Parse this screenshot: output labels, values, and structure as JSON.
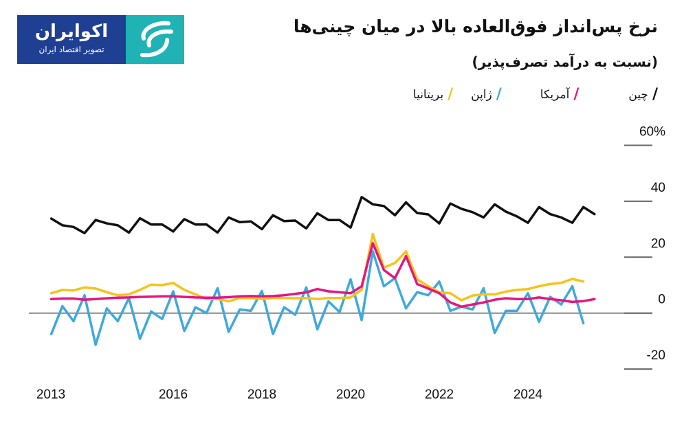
{
  "logo": {
    "name": "اکوایران",
    "tagline": "تصویر اقتصاد ایران",
    "colors": {
      "blue": "#1f3f93",
      "teal": "#1fb3b5"
    }
  },
  "header": {
    "title": "نرخ پس‌انداز فوق‌العاده بالا در میان چینی‌ها",
    "subtitle": "(نسبت به درآمد تصرف‌پذیر)"
  },
  "chart_data": {
    "type": "line",
    "title": "نرخ پس‌انداز فوق‌العاده بالا در میان چینی‌ها",
    "subtitle": "(نسبت به درآمد تصرف‌پذیر)",
    "x_ticks": [
      2013,
      2016,
      2018,
      2020,
      2022,
      2024
    ],
    "y_ticks": [
      60,
      40,
      20,
      0,
      -20
    ],
    "y_tick_labels": [
      "60%",
      "40",
      "20",
      "0",
      "-20"
    ],
    "ylim": [
      -20,
      60
    ],
    "y_axis_position": "right",
    "x_start": 2013.25,
    "x_step": 0.25,
    "legend_placement": "top",
    "series": [
      {
        "name": "چین",
        "color": "#111111",
        "values": [
          33.8,
          31.4,
          30.8,
          28.6,
          33.3,
          32.1,
          31.4,
          28.8,
          33.9,
          31.7,
          31.7,
          29.2,
          33.6,
          31.7,
          31.7,
          28.8,
          34.2,
          32.5,
          32.8,
          30.0,
          35.0,
          32.9,
          33.1,
          30.3,
          35.7,
          33.3,
          33.3,
          30.6,
          41.5,
          38.9,
          38.3,
          35.0,
          39.6,
          35.8,
          35.3,
          32.1,
          39.2,
          37.3,
          36.1,
          34.2,
          38.9,
          36.3,
          34.6,
          32.3,
          37.9,
          35.4,
          34.2,
          32.3,
          37.9,
          35.4
        ]
      },
      {
        "name": "آمریکا",
        "color": "#e6157f",
        "values": [
          5.0,
          5.2,
          5.2,
          4.8,
          5.0,
          5.3,
          5.5,
          5.6,
          5.8,
          5.9,
          6.0,
          6.0,
          5.8,
          5.6,
          5.5,
          5.5,
          5.7,
          6.0,
          6.1,
          6.0,
          6.1,
          6.4,
          6.9,
          7.4,
          8.6,
          7.8,
          7.5,
          7.1,
          9.6,
          25.0,
          15.4,
          12.5,
          20.4,
          10.4,
          8.8,
          7.1,
          3.8,
          2.3,
          3.1,
          3.8,
          4.8,
          5.3,
          5.0,
          5.0,
          5.6,
          5.0,
          4.6,
          4.0,
          4.3,
          5.0
        ]
      },
      {
        "name": "ژاپن",
        "color": "#3ea9dc",
        "values": [
          -7.5,
          2.5,
          -2.9,
          6.4,
          -11.3,
          1.7,
          -2.9,
          5.4,
          -9.2,
          0.6,
          -2.1,
          7.8,
          -6.4,
          2.1,
          0.0,
          8.9,
          -6.7,
          1.3,
          0.8,
          7.9,
          -7.5,
          2.1,
          -0.6,
          9.2,
          -5.8,
          4.2,
          0.4,
          12.1,
          -2.5,
          22.1,
          9.6,
          12.5,
          1.7,
          7.5,
          6.4,
          11.3,
          0.8,
          2.3,
          1.3,
          8.9,
          -7.1,
          0.8,
          0.8,
          7.1,
          -3.1,
          5.8,
          3.1,
          9.6,
          -3.6
        ]
      },
      {
        "name": "بریتانیا",
        "color": "#f7c31a",
        "values": [
          7.1,
          8.3,
          8.1,
          9.2,
          8.8,
          7.5,
          6.4,
          6.7,
          8.3,
          10.2,
          10.0,
          10.8,
          8.3,
          6.7,
          5.0,
          5.0,
          4.2,
          5.4,
          5.4,
          5.0,
          5.4,
          5.4,
          5.3,
          5.4,
          5.0,
          5.4,
          5.4,
          5.6,
          8.3,
          28.3,
          16.3,
          17.9,
          22.1,
          12.1,
          9.6,
          7.5,
          7.1,
          4.6,
          6.3,
          6.7,
          6.7,
          7.7,
          8.3,
          8.6,
          9.6,
          10.4,
          10.8,
          12.2,
          11.3
        ]
      }
    ]
  }
}
